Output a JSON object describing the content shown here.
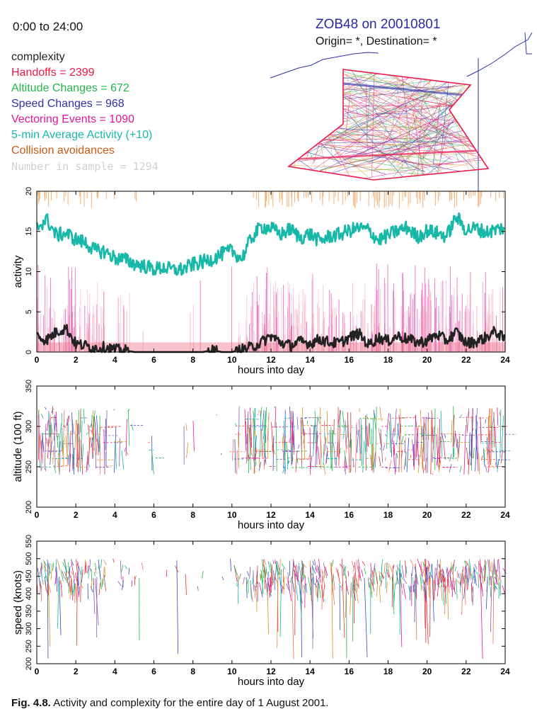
{
  "header": {
    "time_range": "0:00 to 24:00",
    "map_title": "ZOB48 on 20010801",
    "map_subtitle": "Origin= *, Destination= *"
  },
  "legend": {
    "complexity": {
      "label": "complexity",
      "color": "#222222"
    },
    "handoffs": {
      "label": "Handoffs = 2399",
      "color": "#ee1a4a"
    },
    "altitude_changes": {
      "label": "Altitude Changes = 672",
      "color": "#22b84a"
    },
    "speed_changes": {
      "label": "Speed Changes = 968",
      "color": "#3030a8"
    },
    "vectoring": {
      "label": "Vectoring Events = 1090",
      "color": "#e0189a"
    },
    "average_activity": {
      "label": "5-min Average Activity (+10)",
      "color": "#18b8a8"
    },
    "collision": {
      "label": "Collision avoidances",
      "color": "#c85a10"
    },
    "sample": {
      "label": "Number in sample = 1294",
      "color": "#d0d0d0"
    }
  },
  "caption": {
    "prefix": "Fig. 4.8.",
    "text": " Activity and complexity for the entire day of 1 August 2001."
  },
  "chart_data": [
    {
      "type": "line",
      "xlabel": "hours into day",
      "ylabel": "activity",
      "xlim": [
        0,
        24
      ],
      "ylim": [
        0,
        20
      ],
      "xticks": [
        "0",
        "2",
        "4",
        "6",
        "8",
        "10",
        "12",
        "14",
        "16",
        "18",
        "20",
        "22",
        "24"
      ],
      "yticks": [
        "0",
        "5",
        "10",
        "15",
        "20"
      ],
      "series": [
        {
          "name": "5-min Average Activity (+10)",
          "color": "#18b8a8",
          "x": [
            0,
            0.5,
            1,
            1.5,
            2,
            2.5,
            3,
            3.5,
            4,
            4.5,
            5,
            5.5,
            6,
            6.5,
            7,
            7.5,
            8,
            8.5,
            9,
            9.5,
            10,
            10.5,
            11,
            11.5,
            12,
            12.5,
            13,
            13.5,
            14,
            14.5,
            15,
            15.5,
            16,
            16.5,
            17,
            17.5,
            18,
            18.5,
            19,
            19.5,
            20,
            20.5,
            21,
            21.5,
            22,
            22.5,
            23,
            23.5,
            24
          ],
          "values": [
            15.5,
            16.5,
            14.5,
            14.8,
            14,
            13.6,
            12.6,
            12.5,
            11.7,
            11.5,
            11,
            10.7,
            10.3,
            10.5,
            10.2,
            10.3,
            10.9,
            11.2,
            11.6,
            12.2,
            12.6,
            11.6,
            14.2,
            15.6,
            15.4,
            14.6,
            15.3,
            14.2,
            14.7,
            13.8,
            14.4,
            14.6,
            15.1,
            15.4,
            15.2,
            13.9,
            14.5,
            15.1,
            15.5,
            14.3,
            15.1,
            14.8,
            14.4,
            16.8,
            15.2,
            15.4,
            14.9,
            15.2,
            15.5
          ]
        },
        {
          "name": "complexity",
          "color": "#222222",
          "x": [
            0,
            0.5,
            1,
            1.5,
            2,
            2.5,
            3,
            3.5,
            4,
            4.5,
            5,
            5.5,
            6,
            6.5,
            7,
            7.5,
            8,
            8.5,
            9,
            9.5,
            10,
            10.5,
            11,
            11.5,
            12,
            12.5,
            13,
            13.5,
            14,
            14.5,
            15,
            15.5,
            16,
            16.5,
            17,
            17.5,
            18,
            18.5,
            19,
            19.5,
            20,
            20.5,
            21,
            21.5,
            22,
            22.5,
            23,
            23.5,
            24
          ],
          "values": [
            2,
            1.5,
            2.5,
            3,
            1,
            0.8,
            0.5,
            0.6,
            0.3,
            0.2,
            0,
            0,
            0,
            0,
            0,
            0,
            0,
            0,
            0.2,
            0,
            0,
            0.3,
            0.6,
            1.2,
            2,
            1.2,
            0.8,
            1.3,
            1.1,
            1.6,
            1.2,
            1.1,
            1.8,
            2.3,
            0.9,
            1.8,
            1.4,
            2,
            1.6,
            1.2,
            1.4,
            2.2,
            1.4,
            2.5,
            1.1,
            1.3,
            1.8,
            2.6,
            1.5
          ]
        }
      ]
    },
    {
      "type": "scatter",
      "xlabel": "hours into day",
      "ylabel": "altitude (100 ft)",
      "xlim": [
        0,
        24
      ],
      "ylim": [
        200,
        350
      ],
      "xticks": [
        "0",
        "2",
        "4",
        "6",
        "8",
        "10",
        "12",
        "14",
        "16",
        "18",
        "20",
        "22",
        "24"
      ],
      "yticks": [
        "200",
        "250",
        "300",
        "350"
      ]
    },
    {
      "type": "scatter",
      "xlabel": "hours into day",
      "ylabel": "speed (knots)",
      "xlim": [
        0,
        24
      ],
      "ylim": [
        200,
        550
      ],
      "xticks": [
        "0",
        "2",
        "4",
        "6",
        "8",
        "10",
        "12",
        "14",
        "16",
        "18",
        "20",
        "22",
        "24"
      ],
      "yticks": [
        "200",
        "250",
        "300",
        "350",
        "400",
        "450",
        "500",
        "550"
      ]
    }
  ]
}
